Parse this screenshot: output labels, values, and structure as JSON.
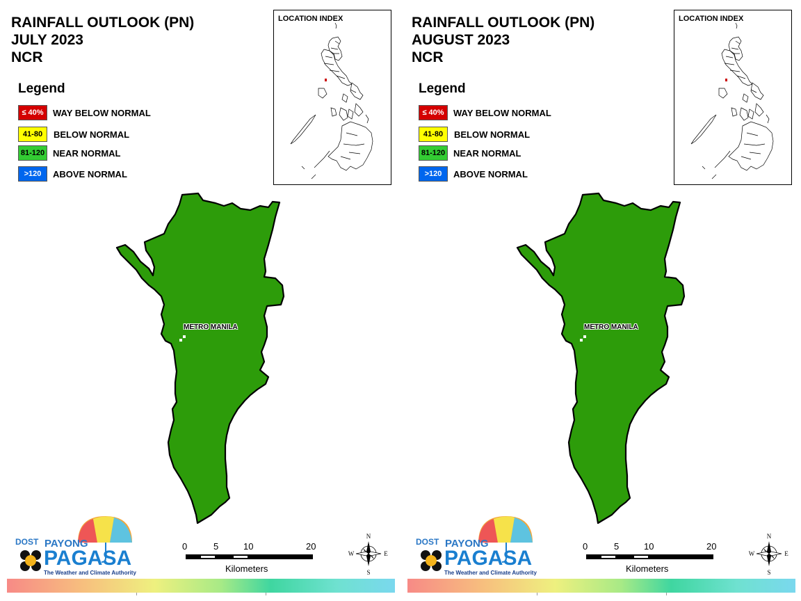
{
  "panels": [
    {
      "title_line1": "RAINFALL OUTLOOK (PN)",
      "title_line2": "JULY 2023",
      "title_line3": "NCR",
      "region_class": "NEAR NORMAL",
      "region_color": "#2d9c0a"
    },
    {
      "title_line1": "RAINFALL OUTLOOK (PN)",
      "title_line2": "AUGUST 2023",
      "title_line3": "NCR",
      "region_class": "NEAR NORMAL",
      "region_color": "#2d9c0a"
    }
  ],
  "legend": {
    "title": "Legend",
    "items": [
      {
        "range": "≤ 40%",
        "label": "WAY BELOW NORMAL",
        "color": "#d40000",
        "text_color": "#ffffff"
      },
      {
        "range": "41-80",
        "label": "BELOW NORMAL",
        "color": "#ffff00",
        "text_color": "#000000"
      },
      {
        "range": "81-120",
        "label": "NEAR NORMAL",
        "color": "#33cc33",
        "text_color": "#000000"
      },
      {
        "range": ">120",
        "label": "ABOVE NORMAL",
        "color": "#0066ee",
        "text_color": "#ffffff"
      }
    ]
  },
  "location_index": {
    "title": "LOCATION INDEX",
    "highlight_color": "#cc0000"
  },
  "map_label": "METRO MANILA",
  "scale_bar": {
    "ticks": [
      "0",
      "5",
      "10",
      "20"
    ],
    "unit": "Kilometers"
  },
  "compass": {
    "n": "N",
    "s": "S",
    "e": "E",
    "w": "W"
  },
  "logo": {
    "dost": "DOST",
    "payong": "PAYONG",
    "pagasa": "PAGASA",
    "tagline": "The Weather and Climate Authority"
  }
}
